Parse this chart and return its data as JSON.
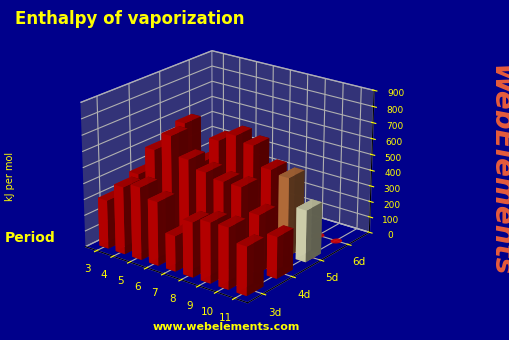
{
  "title": "Enthalpy of vaporization",
  "ylabel": "kJ per mol",
  "xlabel_group": "Period",
  "website": "www.webelements.com",
  "webelements_text": "WebElements",
  "background_color": "#00008B",
  "bar_color_default": "#CC0000",
  "ylim": [
    0,
    900
  ],
  "yticks": [
    0,
    100,
    200,
    300,
    400,
    500,
    600,
    700,
    800,
    900
  ],
  "periods": [
    "3d",
    "4d",
    "5d",
    "6d"
  ],
  "groups": [
    "3",
    "4",
    "5",
    "6",
    "7",
    "8",
    "9",
    "10",
    "11"
  ],
  "enthalpy_data": {
    "3d": {
      "3": 304.8,
      "4": 421.3,
      "5": 453,
      "6": 396.7,
      "7": 220.5,
      "8": 340,
      "9": 373.7,
      "10": 379.1,
      "11": 300.4
    },
    "4d": {
      "3": 380.7,
      "4": 565.7,
      "5": 682.7,
      "6": 567,
      "7": 519.7,
      "8": 494.4,
      "9": 494.4,
      "10": 356.9,
      "11": 257.7
    },
    "5d": {
      "3": 399,
      "4": 648,
      "5": 432,
      "6": 598.5,
      "7": 660.7,
      "8": 629.7,
      "9": 510.1,
      "10": 491.6,
      "11": 324.4
    },
    "6d": {
      "3": 0,
      "4": 0,
      "5": 0,
      "6": 0,
      "7": 0,
      "8": 0,
      "9": 0,
      "10": 0,
      "11": 0
    }
  },
  "bar_colors": {
    "3d": {
      "3": "#CC0000",
      "4": "#CC0000",
      "5": "#CC0000",
      "6": "#CC0000",
      "7": "#CC0000",
      "8": "#CC0000",
      "9": "#CC0000",
      "10": "#CC0000",
      "11": "#CC0000"
    },
    "4d": {
      "3": "#CC0000",
      "4": "#CC0000",
      "5": "#CC0000",
      "6": "#CC0000",
      "7": "#CC0000",
      "8": "#CC0000",
      "9": "#CC0000",
      "10": "#CC0000",
      "11": "#CC0000"
    },
    "5d": {
      "3": "#CC0000",
      "4": "#CC0000",
      "5": "#CC0000",
      "6": "#CC0000",
      "7": "#CC0000",
      "8": "#CC0000",
      "9": "#CC0000",
      "10": "#C87941",
      "11": "#E8E8C0"
    },
    "6d": {
      "3": "#CC0000",
      "4": "#CC0000",
      "5": "#CC0000",
      "6": "#CC0000",
      "7": "#CC0000",
      "8": "#CC0000",
      "9": "#CC0000",
      "10": "#CC0000",
      "11": "#CC0000"
    }
  },
  "flat_dot_color": "#CC0000",
  "platform_color": "#888888",
  "grid_color": "#FFFFFF",
  "title_color": "#FFFF00",
  "axis_label_color": "#FFFF00",
  "website_color": "#FFFF00",
  "webelements_color": "#FF6633"
}
